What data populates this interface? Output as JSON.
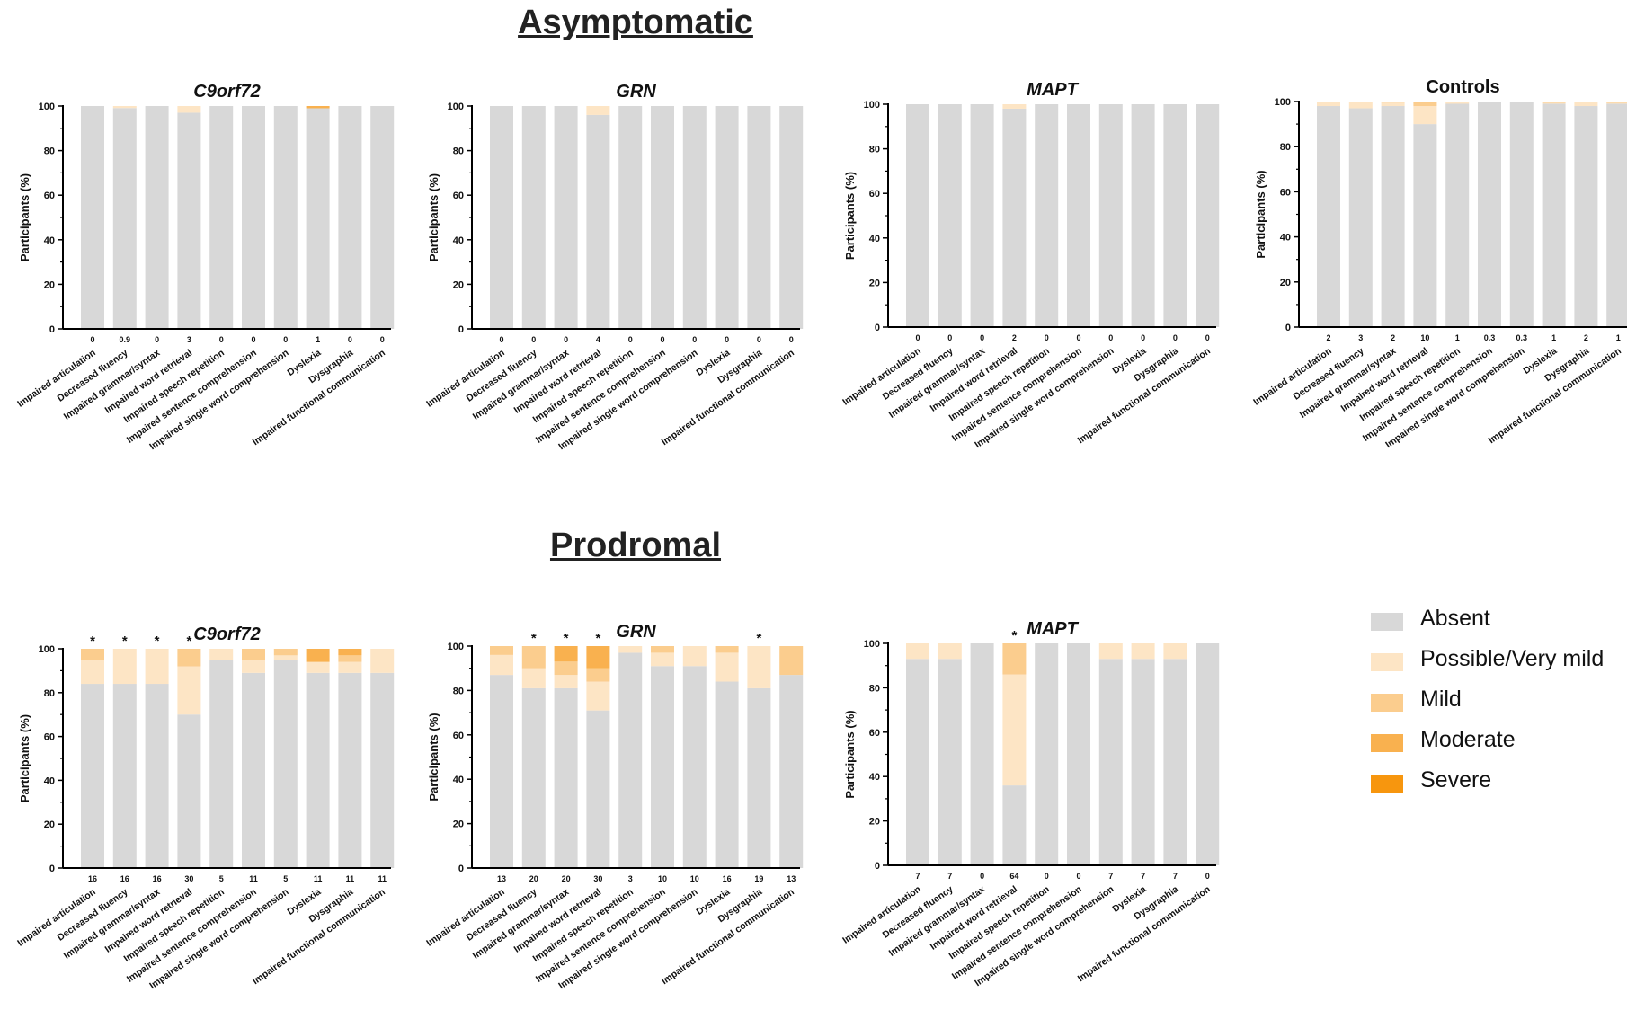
{
  "sections": {
    "asymptomatic": "Asymptomatic",
    "prodromal": "Prodromal"
  },
  "colors": {
    "Absent": "#d8d8d8",
    "Possible/Very mild": "#fde5c5",
    "Mild": "#fbcd8e",
    "Moderate": "#f9b14f",
    "Severe": "#f7960e"
  },
  "legend": [
    {
      "label": "Absent",
      "color": "#d8d8d8"
    },
    {
      "label": "Possible/Very mild",
      "color": "#fde5c5"
    },
    {
      "label": "Mild",
      "color": "#fbcd8e"
    },
    {
      "label": "Moderate",
      "color": "#f9b14f"
    },
    {
      "label": "Severe",
      "color": "#f7960e"
    }
  ],
  "chart_data": [
    {
      "type": "bar",
      "stacked": true,
      "section": "Asymptomatic",
      "title": "C9orf72",
      "title_italic": true,
      "ylabel": "Participants (%)",
      "ylim": [
        0,
        100
      ],
      "yticks": [
        0,
        20,
        40,
        60,
        80,
        100
      ],
      "categories": [
        "Impaired articulation",
        "Decreased fluency",
        "Impaired grammar/syntax",
        "Impaired word retrieval",
        "Impaired speech repetition",
        "Impaired sentence comprehension",
        "Impaired single word comprehension",
        "Dyslexia",
        "Dysgraphia",
        "Impaired functional communication"
      ],
      "bar_labels": [
        "0",
        "0.9",
        "0",
        "3",
        "0",
        "0",
        "0",
        "1",
        "0",
        "0"
      ],
      "significant": [
        false,
        false,
        false,
        false,
        false,
        false,
        false,
        false,
        false,
        false
      ],
      "series": [
        {
          "name": "Absent",
          "values": [
            100,
            99.1,
            100,
            97,
            100,
            100,
            100,
            99,
            100,
            100
          ]
        },
        {
          "name": "Possible/Very mild",
          "values": [
            0,
            0.9,
            0,
            3,
            0,
            0,
            0,
            0,
            0,
            0
          ]
        },
        {
          "name": "Mild",
          "values": [
            0,
            0,
            0,
            0,
            0,
            0,
            0,
            0,
            0,
            0
          ]
        },
        {
          "name": "Moderate",
          "values": [
            0,
            0,
            0,
            0,
            0,
            0,
            0,
            1,
            0,
            0
          ]
        },
        {
          "name": "Severe",
          "values": [
            0,
            0,
            0,
            0,
            0,
            0,
            0,
            0,
            0,
            0
          ]
        }
      ]
    },
    {
      "type": "bar",
      "stacked": true,
      "section": "Asymptomatic",
      "title": "GRN",
      "title_italic": true,
      "ylabel": "Participants (%)",
      "ylim": [
        0,
        100
      ],
      "yticks": [
        0,
        20,
        40,
        60,
        80,
        100
      ],
      "categories": [
        "Impaired articulation",
        "Decreased fluency",
        "Impaired grammar/syntax",
        "Impaired word retrieval",
        "Impaired speech repetition",
        "Impaired sentence comprehension",
        "Impaired single word comprehension",
        "Dyslexia",
        "Dysgraphia",
        "Impaired functional communication"
      ],
      "bar_labels": [
        "0",
        "0",
        "0",
        "4",
        "0",
        "0",
        "0",
        "0",
        "0",
        "0"
      ],
      "significant": [
        false,
        false,
        false,
        false,
        false,
        false,
        false,
        false,
        false,
        false
      ],
      "series": [
        {
          "name": "Absent",
          "values": [
            100,
            100,
            100,
            96,
            100,
            100,
            100,
            100,
            100,
            100
          ]
        },
        {
          "name": "Possible/Very mild",
          "values": [
            0,
            0,
            0,
            4,
            0,
            0,
            0,
            0,
            0,
            0
          ]
        },
        {
          "name": "Mild",
          "values": [
            0,
            0,
            0,
            0,
            0,
            0,
            0,
            0,
            0,
            0
          ]
        },
        {
          "name": "Moderate",
          "values": [
            0,
            0,
            0,
            0,
            0,
            0,
            0,
            0,
            0,
            0
          ]
        },
        {
          "name": "Severe",
          "values": [
            0,
            0,
            0,
            0,
            0,
            0,
            0,
            0,
            0,
            0
          ]
        }
      ]
    },
    {
      "type": "bar",
      "stacked": true,
      "section": "Asymptomatic",
      "title": "MAPT",
      "title_italic": true,
      "ylabel": "Participants (%)",
      "ylim": [
        0,
        100
      ],
      "yticks": [
        0,
        20,
        40,
        60,
        80,
        100
      ],
      "categories": [
        "Impaired articulation",
        "Decreased fluency",
        "Impaired grammar/syntax",
        "Impaired word retrieval",
        "Impaired speech repetition",
        "Impaired sentence comprehension",
        "Impaired single word comprehension",
        "Dyslexia",
        "Dysgraphia",
        "Impaired functional communication"
      ],
      "bar_labels": [
        "0",
        "0",
        "0",
        "2",
        "0",
        "0",
        "0",
        "0",
        "0",
        "0"
      ],
      "significant": [
        false,
        false,
        false,
        false,
        false,
        false,
        false,
        false,
        false,
        false
      ],
      "series": [
        {
          "name": "Absent",
          "values": [
            100,
            100,
            100,
            98,
            100,
            100,
            100,
            100,
            100,
            100
          ]
        },
        {
          "name": "Possible/Very mild",
          "values": [
            0,
            0,
            0,
            2,
            0,
            0,
            0,
            0,
            0,
            0
          ]
        },
        {
          "name": "Mild",
          "values": [
            0,
            0,
            0,
            0,
            0,
            0,
            0,
            0,
            0,
            0
          ]
        },
        {
          "name": "Moderate",
          "values": [
            0,
            0,
            0,
            0,
            0,
            0,
            0,
            0,
            0,
            0
          ]
        },
        {
          "name": "Severe",
          "values": [
            0,
            0,
            0,
            0,
            0,
            0,
            0,
            0,
            0,
            0
          ]
        }
      ]
    },
    {
      "type": "bar",
      "stacked": true,
      "section": "Asymptomatic",
      "title": "Controls",
      "title_italic": false,
      "ylabel": "Participants (%)",
      "ylim": [
        0,
        100
      ],
      "yticks": [
        0,
        20,
        40,
        60,
        80,
        100
      ],
      "categories": [
        "Impaired articulation",
        "Decreased fluency",
        "Impaired grammar/syntax",
        "Impaired word retrieval",
        "Impaired speech repetition",
        "Impaired sentence comprehension",
        "Impaired single word comprehension",
        "Dyslexia",
        "Dysgraphia",
        "Impaired functional communication"
      ],
      "bar_labels": [
        "2",
        "3",
        "2",
        "10",
        "1",
        "0.3",
        "0.3",
        "1",
        "2",
        "1"
      ],
      "significant": [
        false,
        false,
        false,
        false,
        false,
        false,
        false,
        false,
        false,
        false
      ],
      "series": [
        {
          "name": "Absent",
          "values": [
            98,
            97,
            98,
            90,
            99,
            99.7,
            99.7,
            99,
            98,
            99
          ]
        },
        {
          "name": "Possible/Very mild",
          "values": [
            2,
            3,
            1.5,
            8,
            1,
            0.3,
            0.3,
            0.5,
            2,
            0.5
          ]
        },
        {
          "name": "Mild",
          "values": [
            0,
            0,
            0.5,
            1.5,
            0,
            0,
            0,
            0,
            0,
            0
          ]
        },
        {
          "name": "Moderate",
          "values": [
            0,
            0,
            0,
            0.5,
            0,
            0,
            0,
            0.5,
            0,
            0.5
          ]
        },
        {
          "name": "Severe",
          "values": [
            0,
            0,
            0,
            0,
            0,
            0,
            0,
            0,
            0,
            0
          ]
        }
      ]
    },
    {
      "type": "bar",
      "stacked": true,
      "section": "Prodromal",
      "title": "C9orf72",
      "title_italic": true,
      "ylabel": "Participants (%)",
      "ylim": [
        0,
        100
      ],
      "yticks": [
        0,
        20,
        40,
        60,
        80,
        100
      ],
      "categories": [
        "Impaired articulation",
        "Decreased fluency",
        "Impaired grammar/syntax",
        "Impaired word retrieval",
        "Impaired speech repetition",
        "Impaired sentence comprehension",
        "Impaired single word comprehension",
        "Dyslexia",
        "Dysgraphia",
        "Impaired functional communication"
      ],
      "bar_labels": [
        "16",
        "16",
        "16",
        "30",
        "5",
        "11",
        "5",
        "11",
        "11",
        "11"
      ],
      "significant": [
        true,
        true,
        true,
        true,
        false,
        false,
        false,
        false,
        false,
        false
      ],
      "series": [
        {
          "name": "Absent",
          "values": [
            84,
            84,
            84,
            70,
            95,
            89,
            95,
            89,
            89,
            89
          ]
        },
        {
          "name": "Possible/Very mild",
          "values": [
            11,
            16,
            16,
            22,
            5,
            6,
            2,
            5,
            5,
            11
          ]
        },
        {
          "name": "Mild",
          "values": [
            5,
            0,
            0,
            8,
            0,
            5,
            3,
            0,
            3,
            0
          ]
        },
        {
          "name": "Moderate",
          "values": [
            0,
            0,
            0,
            0,
            0,
            0,
            0,
            6,
            3,
            0
          ]
        },
        {
          "name": "Severe",
          "values": [
            0,
            0,
            0,
            0,
            0,
            0,
            0,
            0,
            0,
            0
          ]
        }
      ]
    },
    {
      "type": "bar",
      "stacked": true,
      "section": "Prodromal",
      "title": "GRN",
      "title_italic": true,
      "ylabel": "Participants (%)",
      "ylim": [
        0,
        100
      ],
      "yticks": [
        0,
        20,
        40,
        60,
        80,
        100
      ],
      "categories": [
        "Impaired articulation",
        "Decreased fluency",
        "Impaired grammar/syntax",
        "Impaired word retrieval",
        "Impaired speech repetition",
        "Impaired sentence comprehension",
        "Impaired single word comprehension",
        "Dyslexia",
        "Dysgraphia",
        "Impaired functional communication"
      ],
      "bar_labels": [
        "13",
        "20",
        "20",
        "30",
        "3",
        "10",
        "10",
        "16",
        "19",
        "13"
      ],
      "significant": [
        false,
        true,
        true,
        true,
        false,
        false,
        false,
        false,
        true,
        false
      ],
      "series": [
        {
          "name": "Absent",
          "values": [
            87,
            81,
            81,
            71,
            97,
            91,
            91,
            84,
            81,
            87
          ]
        },
        {
          "name": "Possible/Very mild",
          "values": [
            9,
            9,
            6,
            13,
            3,
            6,
            9,
            13,
            19,
            0
          ]
        },
        {
          "name": "Mild",
          "values": [
            4,
            10,
            6,
            6,
            0,
            3,
            0,
            3,
            0,
            13
          ]
        },
        {
          "name": "Moderate",
          "values": [
            0,
            0,
            7,
            10,
            0,
            0,
            0,
            0,
            0,
            0
          ]
        },
        {
          "name": "Severe",
          "values": [
            0,
            0,
            0,
            0,
            0,
            0,
            0,
            0,
            0,
            0
          ]
        }
      ]
    },
    {
      "type": "bar",
      "stacked": true,
      "section": "Prodromal",
      "title": "MAPT",
      "title_italic": true,
      "ylabel": "Participants (%)",
      "ylim": [
        0,
        100
      ],
      "yticks": [
        0,
        20,
        40,
        60,
        80,
        100
      ],
      "categories": [
        "Impaired articulation",
        "Decreased fluency",
        "Impaired grammar/syntax",
        "Impaired word retrieval",
        "Impaired speech repetition",
        "Impaired sentence comprehension",
        "Impaired single word comprehension",
        "Dyslexia",
        "Dysgraphia",
        "Impaired functional communication"
      ],
      "bar_labels": [
        "7",
        "7",
        "0",
        "64",
        "0",
        "0",
        "7",
        "7",
        "7",
        "0"
      ],
      "significant": [
        false,
        false,
        false,
        true,
        false,
        false,
        false,
        false,
        false,
        false
      ],
      "series": [
        {
          "name": "Absent",
          "values": [
            93,
            93,
            100,
            36,
            100,
            100,
            93,
            93,
            93,
            100
          ]
        },
        {
          "name": "Possible/Very mild",
          "values": [
            7,
            7,
            0,
            50,
            0,
            0,
            7,
            7,
            7,
            0
          ]
        },
        {
          "name": "Mild",
          "values": [
            0,
            0,
            0,
            14,
            0,
            0,
            0,
            0,
            0,
            0
          ]
        },
        {
          "name": "Moderate",
          "values": [
            0,
            0,
            0,
            0,
            0,
            0,
            0,
            0,
            0,
            0
          ]
        },
        {
          "name": "Severe",
          "values": [
            0,
            0,
            0,
            0,
            0,
            0,
            0,
            0,
            0,
            0
          ]
        }
      ]
    }
  ]
}
